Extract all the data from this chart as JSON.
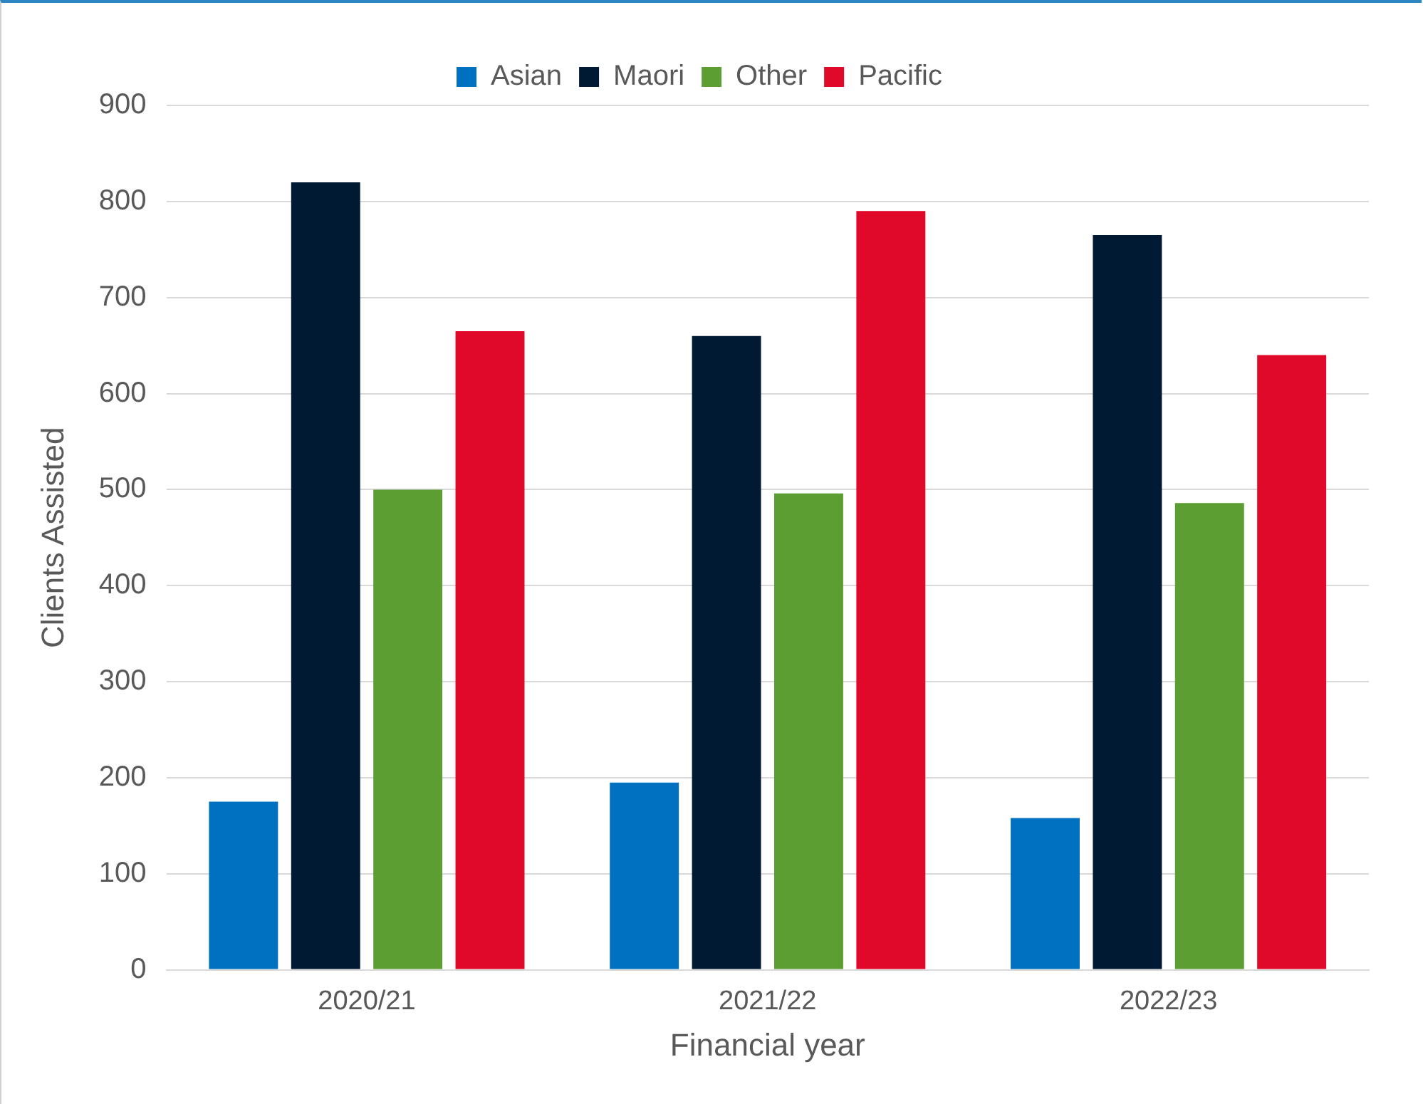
{
  "chart_data": {
    "type": "bar",
    "xlabel": "Financial year",
    "ylabel": "Clients Assisted",
    "categories": [
      "2020/21",
      "2021/22",
      "2022/23"
    ],
    "series": [
      {
        "name": "Asian",
        "color": "#0070c0",
        "values": [
          175,
          195,
          158
        ]
      },
      {
        "name": "Maori",
        "color": "#001a33",
        "values": [
          820,
          660,
          765
        ]
      },
      {
        "name": "Other",
        "color": "#5c9e32",
        "values": [
          500,
          496,
          486
        ]
      },
      {
        "name": "Pacific",
        "color": "#e0092a",
        "values": [
          665,
          790,
          640
        ]
      }
    ],
    "ylim": [
      0,
      900
    ],
    "yticks": [
      0,
      100,
      200,
      300,
      400,
      500,
      600,
      700,
      800,
      900
    ],
    "grid": "y",
    "legend": "top"
  }
}
